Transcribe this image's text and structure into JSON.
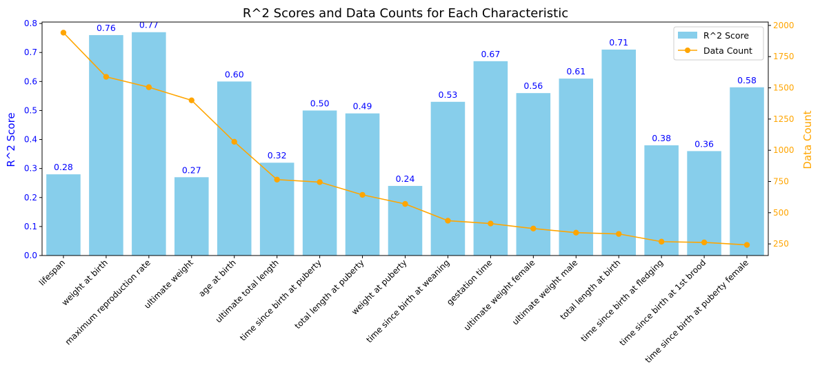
{
  "chart_data": {
    "type": "bar",
    "title": "R^2 Scores and Data Counts for Each Characteristic",
    "categories": [
      "lifespan",
      "weight at birth",
      "maximum reproduction rate",
      "ultimate weight",
      "age at birth",
      "ultimate total length",
      "time since birth at puberty",
      "total length at puberty",
      "weight at puberty",
      "time since birth at weaning",
      "gestation time",
      "ultimate weight female",
      "ultimate weight male",
      "total length at birth",
      "time since birth at fledging",
      "time since birth at 1st brood",
      "time since birth at puberty female"
    ],
    "series": [
      {
        "name": "R^2 Score",
        "type": "bar",
        "axis": "left",
        "color": "#87ceeb",
        "values": [
          0.28,
          0.76,
          0.77,
          0.27,
          0.6,
          0.32,
          0.5,
          0.49,
          0.24,
          0.53,
          0.67,
          0.56,
          0.61,
          0.71,
          0.38,
          0.36,
          0.58
        ],
        "labels": [
          "0.28",
          "0.76",
          "0.77",
          "0.27",
          "0.60",
          "0.32",
          "0.50",
          "0.49",
          "0.24",
          "0.53",
          "0.67",
          "0.56",
          "0.61",
          "0.71",
          "0.38",
          "0.36",
          "0.58"
        ]
      },
      {
        "name": "Data Count",
        "type": "line",
        "axis": "right",
        "color": "#ffa500",
        "values": [
          1942,
          1588,
          1505,
          1400,
          1068,
          765,
          745,
          643,
          570,
          436,
          413,
          373,
          340,
          330,
          268,
          262,
          242
        ]
      }
    ],
    "ylabel": "R^2 Score",
    "ylabel_color": "#0000ff",
    "ylim": [
      0,
      0.805
    ],
    "yticks": [
      0.0,
      0.1,
      0.2,
      0.3,
      0.4,
      0.5,
      0.6,
      0.7,
      0.8
    ],
    "ytick_labels": [
      "0.0",
      "0.1",
      "0.2",
      "0.3",
      "0.4",
      "0.5",
      "0.6",
      "0.7",
      "0.8"
    ],
    "y2label": "Data Count",
    "y2label_color": "#ffa500",
    "y2lim": [
      157,
      2027
    ],
    "y2ticks": [
      250,
      500,
      750,
      1000,
      1250,
      1500,
      1750,
      2000
    ],
    "y2tick_labels": [
      "250",
      "500",
      "750",
      "1000",
      "1250",
      "1500",
      "1750",
      "2000"
    ],
    "bar_label_color": "#0000ff",
    "legend": {
      "position": "top-right",
      "entries": [
        "R^2 Score",
        "Data Count"
      ]
    }
  }
}
